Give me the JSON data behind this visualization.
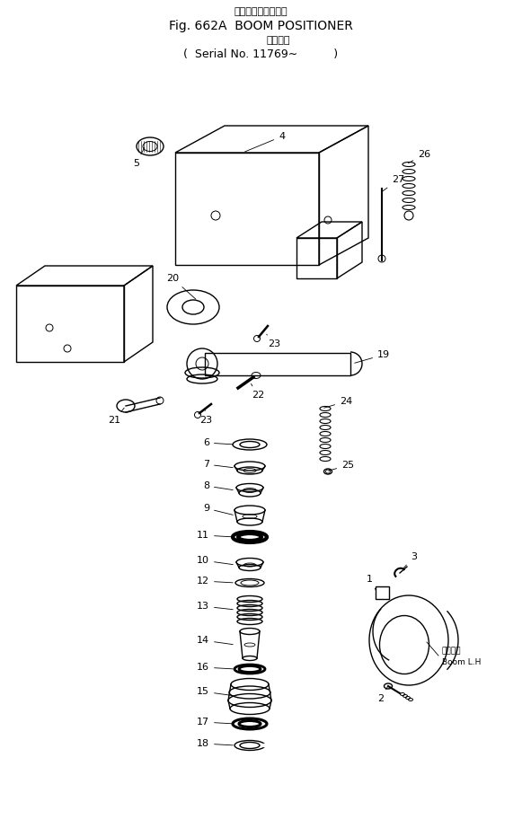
{
  "title_jp": "ブーム　ポジショナ",
  "title_en": "Fig. 662A  BOOM POSITIONER",
  "subtitle_jp": "適用号機",
  "subtitle_en": "Serial No. 11769∼",
  "bg_color": "#ffffff",
  "fg_color": "#000000",
  "figsize": [
    5.81,
    9.22
  ],
  "dpi": 100
}
